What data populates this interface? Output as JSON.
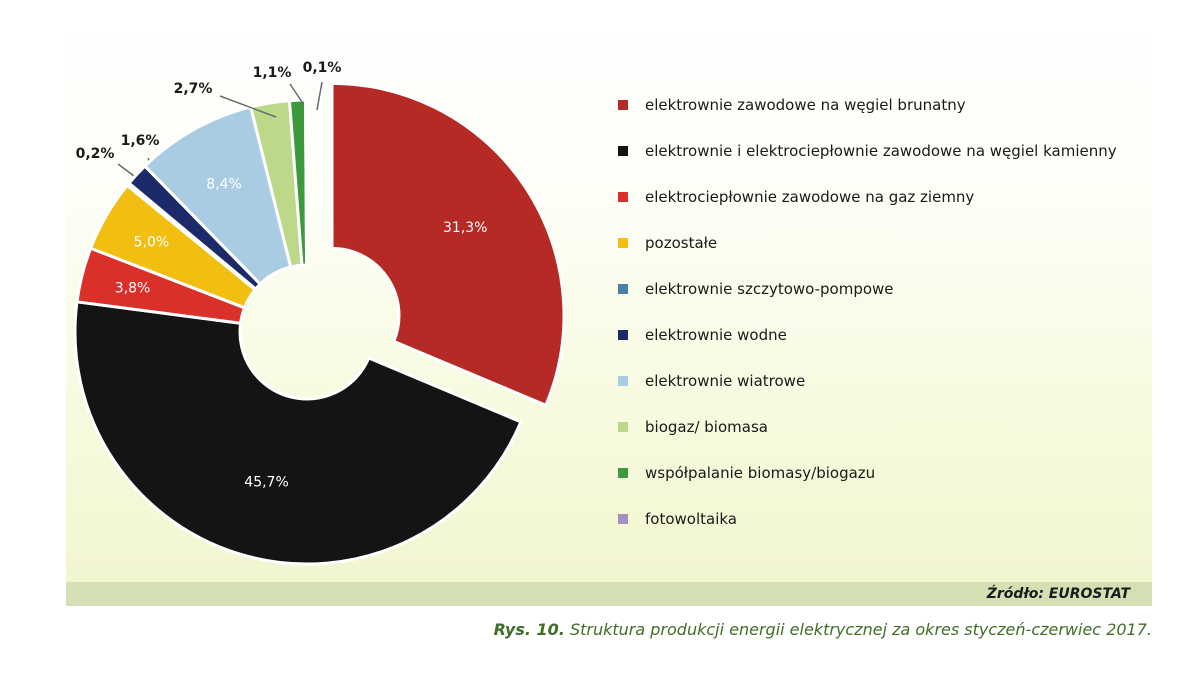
{
  "chart_data": {
    "type": "pie",
    "variant": "donut",
    "slices": [
      {
        "label": "elektrownie zawodowe na węgiel brunatny",
        "value": 31.3,
        "display": "31,3%",
        "color": "#b52a24",
        "exploded": true
      },
      {
        "label": "elektrownie i elektrociepłownie zawodowe na węgiel kamienny",
        "value": 45.7,
        "display": "45,7%",
        "color": "#141414"
      },
      {
        "label": "elektrociepłownie zawodowe na gaz ziemny",
        "value": 3.8,
        "display": "3,8%",
        "color": "#d9302a"
      },
      {
        "label": "pozostałe",
        "value": 5.0,
        "display": "5,0%",
        "color": "#f2be12"
      },
      {
        "label": "elektrownie szczytowo-pompowe",
        "value": 0.2,
        "display": "0,2%",
        "color": "#4a7fa8"
      },
      {
        "label": "elektrownie wodne",
        "value": 1.6,
        "display": "1,6%",
        "color": "#1c2a6b"
      },
      {
        "label": "elektrownie wiatrowe",
        "value": 8.4,
        "display": "8,4%",
        "color": "#a9cce2"
      },
      {
        "label": "biogaz/ biomasa",
        "value": 2.7,
        "display": "2,7%",
        "color": "#bcd98a"
      },
      {
        "label": "współpalanie biomasy/biogazu",
        "value": 1.1,
        "display": "1,1%",
        "color": "#3c9a3c"
      },
      {
        "label": "fotowoltaika",
        "value": 0.1,
        "display": "0,1%",
        "color": "#a58fc2"
      }
    ],
    "legend_position": "right"
  },
  "source": "Źródło: EUROSTAT",
  "caption": {
    "prefix": "Rys. 10.",
    "text": "Struktura produkcji energii elektrycznej za okres styczeń-czerwiec 2017."
  }
}
